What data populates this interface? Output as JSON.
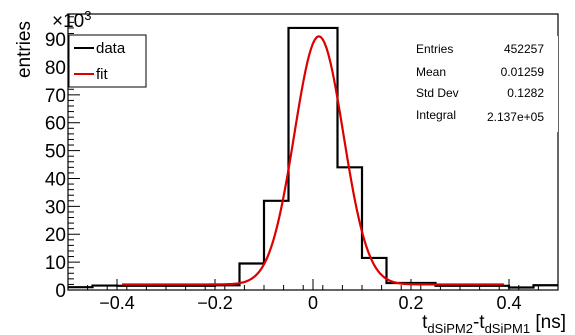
{
  "chart_data": {
    "type": "line",
    "title": "",
    "xlabel": {
      "main": "t",
      "sub1": "dSiPM2",
      "mid": "-t",
      "sub2": "dSiPM1",
      "unit": " [ns]"
    },
    "ylabel": "entries",
    "y_multiplier": {
      "base": "×10",
      "exp": "3"
    },
    "xlim": [
      -0.5,
      0.5
    ],
    "ylim": [
      0,
      99
    ],
    "x_ticks": [
      -0.4,
      -0.2,
      0,
      0.2,
      0.4
    ],
    "x_tick_labels": [
      "−0.4",
      "−0.2",
      "0",
      "0.2",
      "0.4"
    ],
    "y_ticks": [
      0,
      10,
      20,
      30,
      40,
      50,
      60,
      70,
      80,
      90
    ],
    "y_tick_labels": [
      "0",
      "10",
      "20",
      "30",
      "40",
      "50",
      "60",
      "70",
      "80",
      "90"
    ],
    "grid": false,
    "legend": {
      "placement": "top-left",
      "entries": [
        "data",
        "fit"
      ]
    },
    "series": [
      {
        "name": "data",
        "kind": "step-histogram",
        "color": "#000000",
        "bin_edges": [
          -0.5,
          -0.45,
          -0.4,
          -0.35,
          -0.3,
          -0.25,
          -0.2,
          -0.15,
          -0.1,
          -0.05,
          0.0,
          0.05,
          0.1,
          0.15,
          0.2,
          0.25,
          0.3,
          0.35,
          0.4,
          0.45,
          0.5
        ],
        "values": [
          1.0,
          1.6,
          1.5,
          1.5,
          1.5,
          1.5,
          1.7,
          9.5,
          32,
          94,
          94,
          44,
          11.5,
          2.5,
          2.5,
          1.5,
          1.5,
          1.5,
          0.9,
          1.7
        ]
      },
      {
        "name": "fit",
        "kind": "gaussian-fit",
        "color": "#dd0000",
        "x_range": [
          -0.39,
          0.39
        ],
        "constant": 89,
        "mean": 0.012,
        "sigma": 0.05,
        "baseline": 2
      }
    ],
    "stats_box": {
      "rows": [
        {
          "label": "Entries",
          "value": "452257"
        },
        {
          "label": "Mean",
          "value": "0.01259"
        },
        {
          "label": "Std Dev",
          "value": "0.1282"
        },
        {
          "label": "Integral",
          "value": "2.137e+05"
        }
      ]
    }
  }
}
